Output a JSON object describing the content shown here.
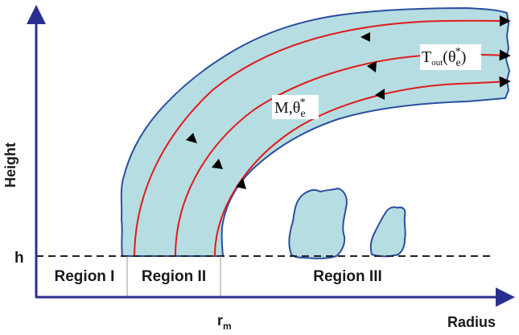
{
  "axes": {
    "y_label": "Height",
    "x_label": "Radius",
    "h_label": "h",
    "rm_main": "r",
    "rm_sub": "m"
  },
  "regions": [
    "Region I",
    "Region II",
    "Region III"
  ],
  "annotations": {
    "inflow_main": "M,θ",
    "inflow_sub": "e",
    "inflow_sup": "*",
    "outflow_T": "T",
    "outflow_sub": "out",
    "outflow_paren_open": "(θ",
    "outflow_theta_sub": "e",
    "outflow_theta_sup": "*",
    "outflow_paren_close": ")"
  },
  "colors": {
    "axis": "#2a2f8f",
    "cloud_fill": "#b6dde2",
    "cloud_edge": "#2b4fa0",
    "streamline": "#e01b1b",
    "dashed": "#222222",
    "divider": "#9a9a9a"
  }
}
